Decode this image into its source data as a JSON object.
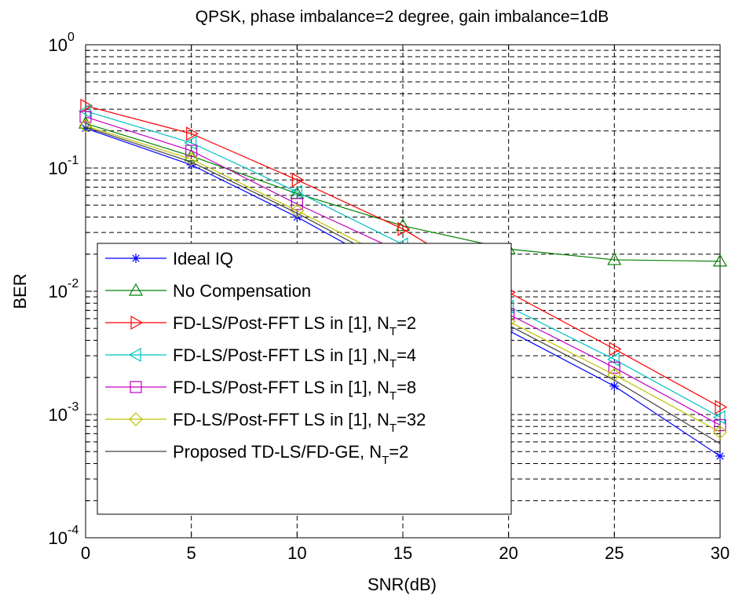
{
  "chart_data": {
    "type": "line",
    "title": "QPSK, phase imbalance=2 degree, gain imbalance=1dB",
    "xlabel": "SNR(dB)",
    "ylabel": "BER",
    "xlim": [
      0,
      30
    ],
    "ylim": [
      0.0001,
      1
    ],
    "yscale": "log",
    "grid": true,
    "grid_style": "dashed",
    "legend_position": "lower-left",
    "x_ticks": [
      "0",
      "5",
      "10",
      "15",
      "20",
      "25",
      "30"
    ],
    "y_ticks": [
      {
        "base": "10",
        "exp": "0"
      },
      {
        "base": "10",
        "exp": "-1"
      },
      {
        "base": "10",
        "exp": "-2"
      },
      {
        "base": "10",
        "exp": "-3"
      },
      {
        "base": "10",
        "exp": "-4"
      }
    ],
    "x": [
      0,
      5,
      10,
      15,
      20,
      25,
      30
    ],
    "series": [
      {
        "key": "s1",
        "label": "Ideal IQ",
        "label_sub": "",
        "label_after": "",
        "color": "#0000ff",
        "marker": "star",
        "values": [
          0.21,
          0.106,
          0.04,
          0.0135,
          0.0048,
          0.0017,
          0.00046
        ]
      },
      {
        "key": "s2",
        "label": "No Compensation",
        "label_sub": "",
        "label_after": "",
        "color": "#008000",
        "marker": "triangle-up",
        "values": [
          0.23,
          0.125,
          0.062,
          0.034,
          0.022,
          0.018,
          0.0175
        ]
      },
      {
        "key": "s3",
        "label": "FD-LS/Post-FFT LS in [1], N",
        "label_sub": "T",
        "label_after": "=2",
        "color": "#ff0000",
        "marker": "triangle-right",
        "values": [
          0.32,
          0.19,
          0.08,
          0.032,
          0.0098,
          0.0034,
          0.00115
        ]
      },
      {
        "key": "s4",
        "label": "FD-LS/Post-FFT LS in [1] ,N",
        "label_sub": "T",
        "label_after": "=4",
        "color": "#00c0c0",
        "marker": "triangle-left",
        "values": [
          0.29,
          0.16,
          0.064,
          0.024,
          0.0075,
          0.0028,
          0.00095
        ]
      },
      {
        "key": "s5",
        "label": "FD-LS/Post-FFT LS in [1], N",
        "label_sub": "T",
        "label_after": "=8",
        "color": "#c000c0",
        "marker": "square",
        "values": [
          0.26,
          0.138,
          0.051,
          0.0205,
          0.0065,
          0.0024,
          0.00082
        ]
      },
      {
        "key": "s6",
        "label": "FD-LS/Post-FFT LS in [1], N",
        "label_sub": "T",
        "label_after": "=32",
        "color": "#c0c000",
        "marker": "diamond",
        "values": [
          0.22,
          0.118,
          0.045,
          0.0165,
          0.0057,
          0.0021,
          0.00072
        ]
      },
      {
        "key": "s7",
        "label": "Proposed TD-LS/FD-GE, N",
        "label_sub": "T",
        "label_after": "=2",
        "color": "#404040",
        "marker": "none",
        "values": [
          0.215,
          0.112,
          0.043,
          0.015,
          0.0053,
          0.0019,
          0.00058
        ]
      }
    ]
  }
}
